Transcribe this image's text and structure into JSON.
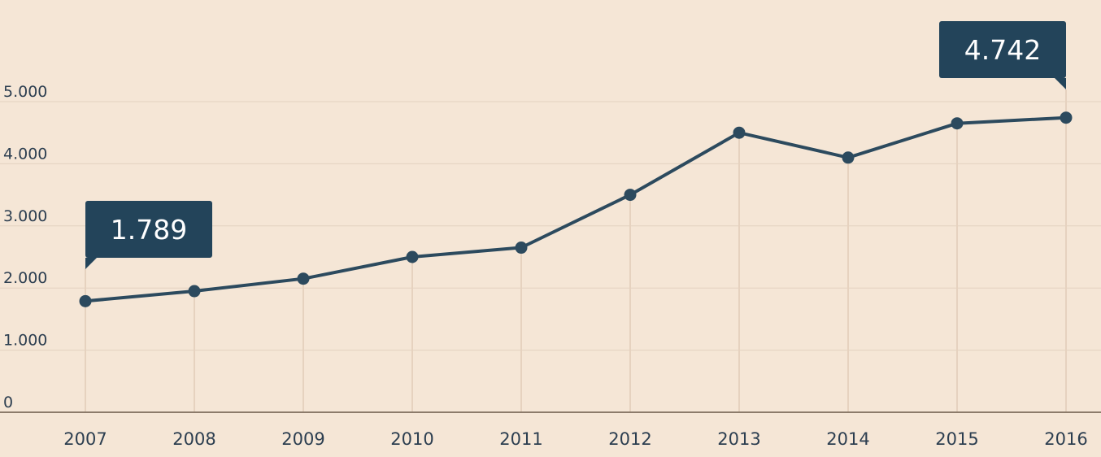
{
  "chart_data": {
    "type": "line",
    "title": "",
    "xlabel": "",
    "ylabel": "",
    "x": [
      "2007",
      "2008",
      "2009",
      "2010",
      "2011",
      "2012",
      "2013",
      "2014",
      "2015",
      "2016"
    ],
    "series": [
      {
        "values": [
          1789,
          1950,
          2150,
          2500,
          2650,
          3500,
          4500,
          4100,
          4650,
          4742
        ]
      }
    ],
    "ylim": [
      0,
      5000
    ],
    "yticks": [
      0,
      1000,
      2000,
      3000,
      4000,
      5000
    ],
    "ytick_labels": [
      "0",
      "1.000",
      "2.000",
      "3.000",
      "4.000",
      "5.000"
    ],
    "grid": true,
    "legend": "none",
    "annotations": [
      {
        "index": 0,
        "text": "1.789"
      },
      {
        "index": 9,
        "text": "4.742"
      }
    ],
    "colors": {
      "background": "#f5e6d6",
      "line": "#2c4a5e",
      "callout": "#23445a",
      "callout_text": "#ffffff",
      "grid": "#e3d2c0",
      "drop_line": "#e6d2bf",
      "axis": "#8c7b6b",
      "tick_text": "#2c3e50"
    }
  }
}
